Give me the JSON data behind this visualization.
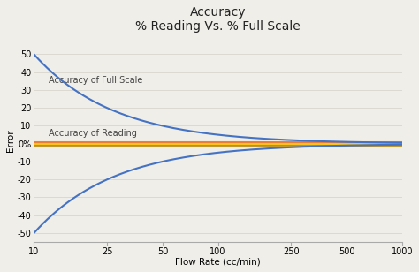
{
  "title_line1": "Accuracy",
  "title_line2": "% Reading Vs. % Full Scale",
  "xlabel": "Flow Rate (cc/min)",
  "ylabel": "Error",
  "xlim": [
    10,
    1000
  ],
  "ylim": [
    -55,
    58
  ],
  "xticks": [
    10,
    25,
    50,
    100,
    250,
    500,
    1000
  ],
  "yticks": [
    -50,
    -40,
    -30,
    -20,
    -10,
    0,
    10,
    20,
    30,
    40,
    50
  ],
  "ytick_labels": [
    "-50",
    "-40",
    "-30",
    "-20",
    "-10",
    "0%",
    "10",
    "20",
    "30",
    "40",
    "50"
  ],
  "full_scale_k": 500,
  "reading_pct": 1.0,
  "full_scale_color": "#4472C4",
  "reading_upper_color": "#ED7D31",
  "reading_lower_color": "#B8860B",
  "reading_fill_color": "#FFC000",
  "bg_color": "#F0EEE8",
  "plot_bg_color": "#F0EEE8",
  "grid_color": "#D8D5CC",
  "label_full_scale": "Accuracy of Full Scale",
  "label_reading": "Accuracy of Reading",
  "title_fontsize": 10,
  "axis_label_fontsize": 7.5,
  "tick_fontsize": 7,
  "annotation_fontsize": 7
}
